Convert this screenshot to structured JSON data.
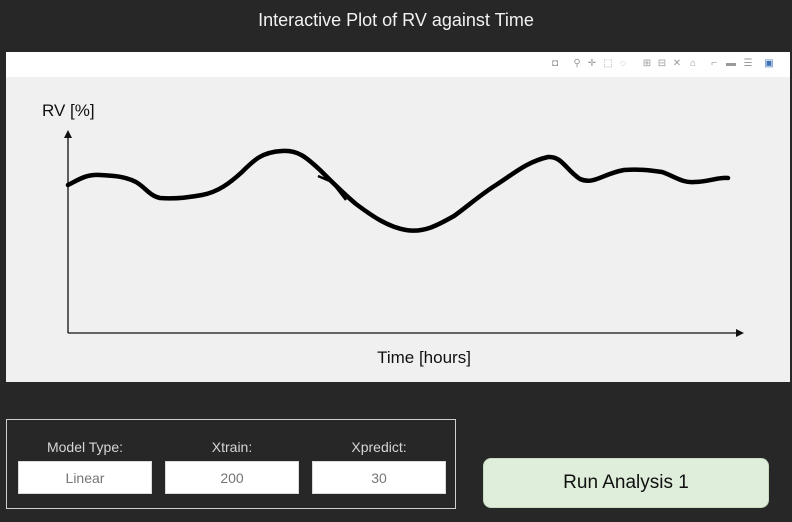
{
  "header": {
    "title": "Interactive Plot of RV against Time"
  },
  "plot": {
    "ylabel": "RV [%]",
    "xlabel": "Time [hours]",
    "modebar_icons": [
      "camera-icon",
      "zoom-icon",
      "pan-icon",
      "box-select-icon",
      "lasso-icon",
      "zoom-in-icon",
      "zoom-out-icon",
      "autoscale-icon",
      "reset-axes-icon",
      "spike-lines-icon",
      "hover-closest-icon",
      "hover-compare-icon",
      "plotly-logo-icon"
    ],
    "line_color": "#000000"
  },
  "controls": {
    "model_type": {
      "label": "Model Type:",
      "placeholder": "Linear"
    },
    "xtrain": {
      "label": "Xtrain:",
      "placeholder": "200"
    },
    "xpredict": {
      "label": "Xpredict:",
      "placeholder": "30"
    }
  },
  "run_button": {
    "label": "Run Analysis 1"
  },
  "colors": {
    "background": "#272727",
    "button_bg": "#dfeeda",
    "plot_bg": "#f0f0f0"
  }
}
